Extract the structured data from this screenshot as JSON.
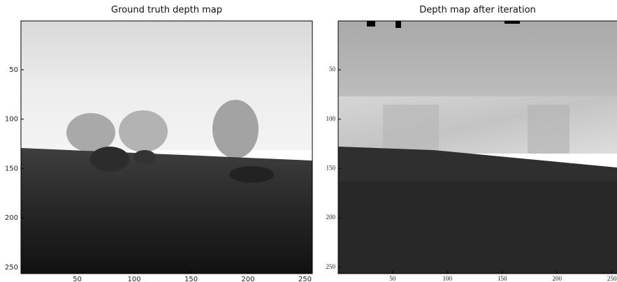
{
  "chart_data": [
    {
      "type": "image",
      "title": "Ground truth depth map",
      "xlim": [
        0.5,
        256.5
      ],
      "ylim": [
        0.5,
        256.5
      ],
      "xticks": [
        50,
        100,
        150,
        200,
        250
      ],
      "yticks": [
        50,
        100,
        150,
        200,
        250
      ]
    },
    {
      "type": "image",
      "title": "Depth map after iteration",
      "xlim": [
        0.5,
        256.5
      ],
      "ylim": [
        0.5,
        256.5
      ],
      "xticks": [
        50,
        100,
        150,
        200,
        250
      ],
      "yticks": [
        50,
        100,
        150,
        200,
        250
      ]
    }
  ]
}
